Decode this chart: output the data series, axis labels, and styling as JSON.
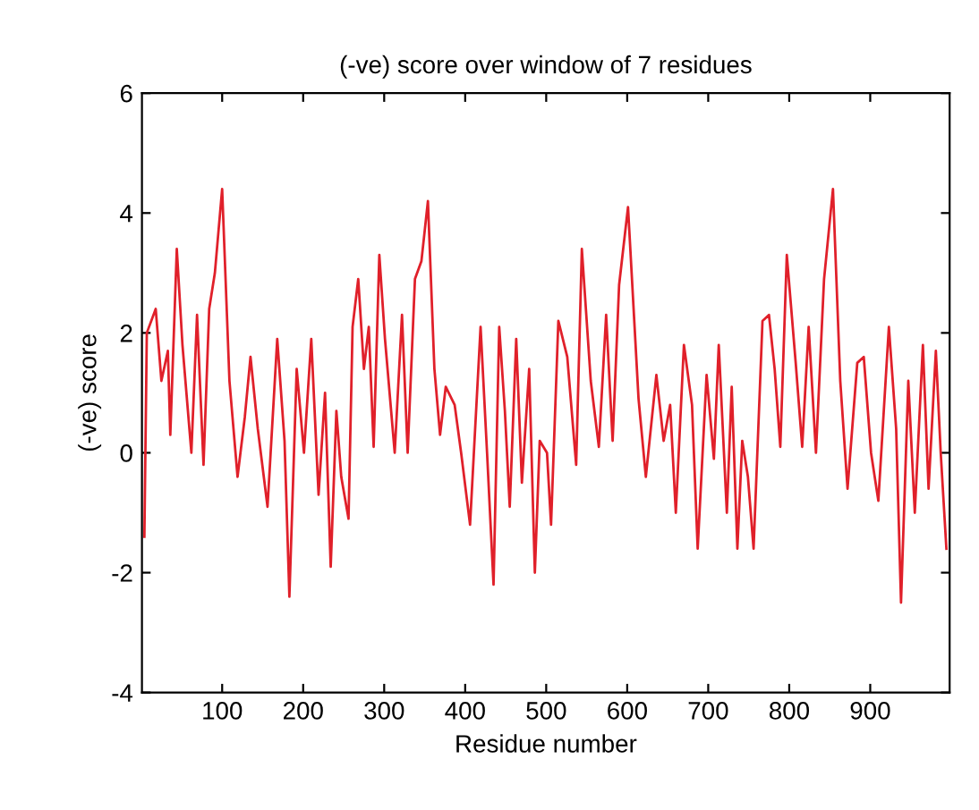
{
  "chart_data": {
    "type": "line",
    "title": "(-ve) score over window of 7 residues",
    "xlabel": "Residue number",
    "ylabel": "(-ve) score",
    "xlim": [
      1,
      998
    ],
    "xticks": [
      100,
      200,
      300,
      400,
      500,
      600,
      700,
      800,
      900
    ],
    "ylim": [
      -4,
      6
    ],
    "yticks": [
      -4,
      -2,
      0,
      2,
      4,
      6
    ],
    "grid": false,
    "line_style": "solid",
    "series": [
      {
        "color": "#e0202a",
        "x": [
          4,
          7,
          18,
          25,
          33,
          36,
          44,
          51,
          62,
          69,
          77,
          84,
          91,
          100,
          109,
          119,
          128,
          135,
          144,
          156,
          168,
          177,
          183,
          192,
          201,
          210,
          219,
          227,
          234,
          241,
          247,
          256,
          261,
          268,
          275,
          281,
          287,
          294,
          301,
          313,
          322,
          329,
          338,
          346,
          354,
          362,
          369,
          376,
          387,
          395,
          406,
          419,
          427,
          435,
          442,
          449,
          455,
          463,
          470,
          479,
          486,
          492,
          501,
          506,
          515,
          526,
          537,
          544,
          555,
          565,
          574,
          582,
          590,
          601,
          614,
          623,
          636,
          645,
          653,
          660,
          670,
          680,
          687,
          698,
          707,
          713,
          723,
          729,
          736,
          742,
          749,
          756,
          767,
          775,
          782,
          789,
          797,
          808,
          816,
          824,
          833,
          843,
          854,
          863,
          872,
          884,
          892,
          901,
          910,
          923,
          932,
          938,
          947,
          955,
          965,
          972,
          981,
          987,
          994
        ],
        "values": [
          -1.4,
          2.0,
          2.4,
          1.2,
          1.7,
          0.3,
          3.4,
          1.8,
          0.0,
          2.3,
          -0.2,
          2.4,
          3.0,
          4.4,
          1.2,
          -0.4,
          0.6,
          1.6,
          0.4,
          -0.9,
          1.9,
          0.2,
          -2.4,
          1.4,
          0.0,
          1.9,
          -0.7,
          1.0,
          -1.9,
          0.7,
          -0.4,
          -1.1,
          2.1,
          2.9,
          1.4,
          2.1,
          0.1,
          3.3,
          1.9,
          0.0,
          2.3,
          0.0,
          2.9,
          3.2,
          4.2,
          1.4,
          0.3,
          1.1,
          0.8,
          0.0,
          -1.2,
          2.1,
          0.0,
          -2.2,
          2.1,
          0.7,
          -0.9,
          1.9,
          -0.5,
          1.4,
          -2.0,
          0.2,
          0.0,
          -1.2,
          2.2,
          1.6,
          -0.2,
          3.4,
          1.2,
          0.1,
          2.3,
          0.2,
          2.8,
          4.1,
          0.9,
          -0.4,
          1.3,
          0.2,
          0.8,
          -1.0,
          1.8,
          0.8,
          -1.6,
          1.3,
          -0.1,
          1.8,
          -1.0,
          1.1,
          -1.6,
          0.2,
          -0.4,
          -1.6,
          2.2,
          2.3,
          1.4,
          0.1,
          3.3,
          1.5,
          0.1,
          2.1,
          0.0,
          2.9,
          4.4,
          1.2,
          -0.6,
          1.5,
          1.6,
          0.0,
          -0.8,
          2.1,
          0.4,
          -2.5,
          1.2,
          -1.0,
          1.8,
          -0.6,
          1.7,
          0.0,
          -1.6
        ]
      }
    ]
  }
}
